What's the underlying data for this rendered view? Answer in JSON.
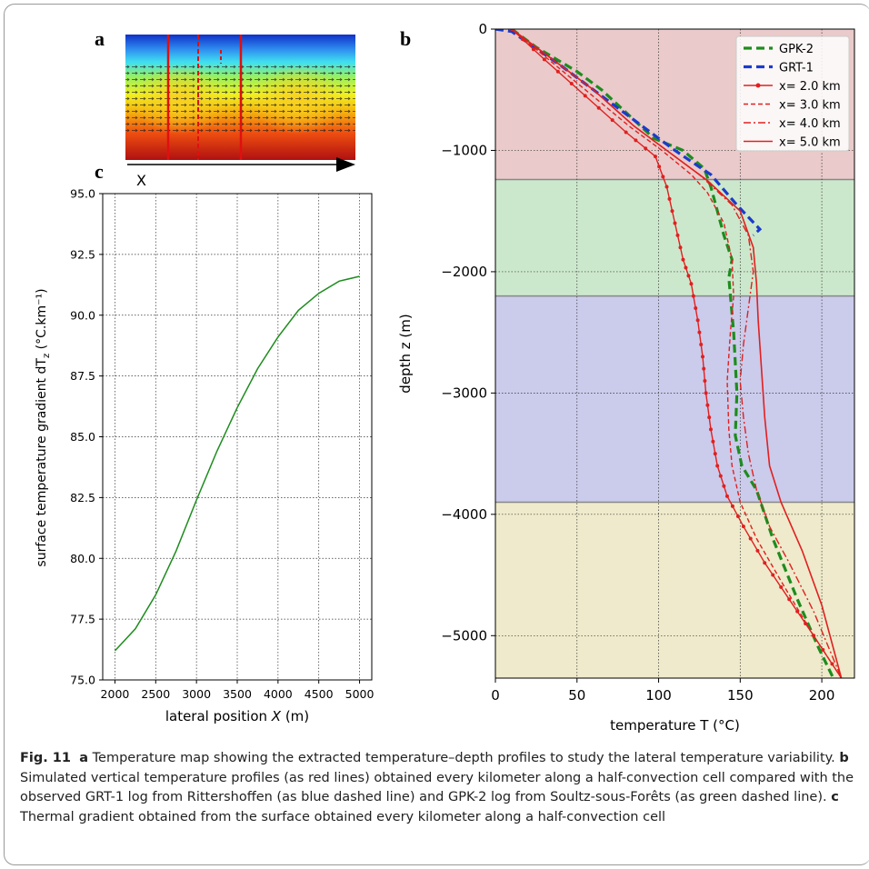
{
  "panel_labels": {
    "a": "a",
    "b": "b",
    "c": "c"
  },
  "panel_a": {
    "axis_label": "X"
  },
  "chart_data": [
    {
      "panel": "b",
      "type": "line",
      "xlabel": "temperature T (°C)",
      "ylabel": "depth z (m)",
      "xlim": [
        0,
        220
      ],
      "ylim": [
        -5350,
        0
      ],
      "xticks": [
        0,
        50,
        100,
        150,
        200
      ],
      "yticks": [
        0,
        -1000,
        -2000,
        -3000,
        -4000,
        -5000
      ],
      "grid": true,
      "legend_position": "top-right",
      "layers": [
        {
          "top": 0,
          "bottom": -1240,
          "color": "#eacaca"
        },
        {
          "top": -1240,
          "bottom": -2200,
          "color": "#cce8cc"
        },
        {
          "top": -2200,
          "bottom": -3900,
          "color": "#cbcbeb"
        },
        {
          "top": -3900,
          "bottom": -5350,
          "color": "#eeeacb"
        }
      ],
      "series": [
        {
          "name": "GPK-2",
          "color": "#1e8c1e",
          "style": "dashed-thick",
          "points": [
            [
              10,
              0
            ],
            [
              25,
              -150
            ],
            [
              50,
              -350
            ],
            [
              65,
              -500
            ],
            [
              85,
              -750
            ],
            [
              97,
              -900
            ],
            [
              115,
              -1000
            ],
            [
              128,
              -1150
            ],
            [
              132,
              -1300
            ],
            [
              135,
              -1450
            ],
            [
              140,
              -1700
            ],
            [
              145,
              -1900
            ],
            [
              143,
              -2050
            ],
            [
              146,
              -2500
            ],
            [
              148,
              -3000
            ],
            [
              147,
              -3350
            ],
            [
              151,
              -3600
            ],
            [
              160,
              -3800
            ],
            [
              170,
              -4200
            ],
            [
              185,
              -4700
            ],
            [
              198,
              -5100
            ],
            [
              207,
              -5350
            ]
          ]
        },
        {
          "name": "GRT-1",
          "color": "#1a3ccc",
          "style": "dashed-thick",
          "points": [
            [
              0,
              0
            ],
            [
              10,
              -20
            ],
            [
              40,
              -300
            ],
            [
              70,
              -600
            ],
            [
              90,
              -800
            ],
            [
              110,
              -1000
            ],
            [
              132,
              -1200
            ],
            [
              148,
              -1450
            ],
            [
              155,
              -1550
            ],
            [
              162,
              -1650
            ],
            [
              158,
              -1700
            ]
          ]
        },
        {
          "name": "x= 2.0 km",
          "color": "#e02020",
          "style": "solid-dots",
          "points": [
            [
              10,
              0
            ],
            [
              30,
              -250
            ],
            [
              55,
              -550
            ],
            [
              80,
              -850
            ],
            [
              98,
              -1050
            ],
            [
              105,
              -1300
            ],
            [
              110,
              -1600
            ],
            [
              115,
              -1900
            ],
            [
              120,
              -2100
            ],
            [
              124,
              -2400
            ],
            [
              127,
              -2700
            ],
            [
              129,
              -3000
            ],
            [
              132,
              -3300
            ],
            [
              136,
              -3600
            ],
            [
              142,
              -3850
            ],
            [
              152,
              -4100
            ],
            [
              165,
              -4400
            ],
            [
              180,
              -4700
            ],
            [
              195,
              -5000
            ],
            [
              212,
              -5350
            ]
          ]
        },
        {
          "name": "x= 3.0 km",
          "color": "#e02020",
          "style": "dashed",
          "points": [
            [
              10,
              0
            ],
            [
              28,
              -200
            ],
            [
              55,
              -500
            ],
            [
              82,
              -800
            ],
            [
              102,
              -1000
            ],
            [
              120,
              -1200
            ],
            [
              130,
              -1350
            ],
            [
              140,
              -1600
            ],
            [
              145,
              -1900
            ],
            [
              146,
              -2200
            ],
            [
              144,
              -2500
            ],
            [
              142,
              -2900
            ],
            [
              143,
              -3300
            ],
            [
              145,
              -3600
            ],
            [
              150,
              -3900
            ],
            [
              160,
              -4200
            ],
            [
              175,
              -4550
            ],
            [
              195,
              -5000
            ],
            [
              212,
              -5350
            ]
          ]
        },
        {
          "name": "x= 4.0 km",
          "color": "#e02020",
          "style": "dashdot",
          "points": [
            [
              10,
              0
            ],
            [
              30,
              -200
            ],
            [
              60,
              -500
            ],
            [
              85,
              -800
            ],
            [
              105,
              -1000
            ],
            [
              125,
              -1200
            ],
            [
              145,
              -1450
            ],
            [
              155,
              -1700
            ],
            [
              158,
              -2000
            ],
            [
              155,
              -2300
            ],
            [
              152,
              -2600
            ],
            [
              150,
              -2900
            ],
            [
              152,
              -3200
            ],
            [
              155,
              -3500
            ],
            [
              160,
              -3800
            ],
            [
              168,
              -4100
            ],
            [
              180,
              -4400
            ],
            [
              195,
              -4800
            ],
            [
              212,
              -5350
            ]
          ]
        },
        {
          "name": "x= 5.0 km",
          "color": "#e02020",
          "style": "solid",
          "points": [
            [
              10,
              0
            ],
            [
              30,
              -200
            ],
            [
              60,
              -500
            ],
            [
              85,
              -800
            ],
            [
              105,
              -1000
            ],
            [
              130,
              -1250
            ],
            [
              150,
              -1500
            ],
            [
              158,
              -1800
            ],
            [
              160,
              -2100
            ],
            [
              161,
              -2400
            ],
            [
              163,
              -2800
            ],
            [
              165,
              -3200
            ],
            [
              168,
              -3600
            ],
            [
              175,
              -3900
            ],
            [
              188,
              -4300
            ],
            [
              200,
              -4750
            ],
            [
              212,
              -5350
            ]
          ]
        }
      ]
    },
    {
      "panel": "c",
      "type": "line",
      "xlabel": "lateral position X (m)",
      "ylabel": "surface temperature gradient dTz (°C.km⁻¹)",
      "xlim": [
        1850,
        5150
      ],
      "ylim": [
        75,
        95
      ],
      "xticks": [
        2000,
        2500,
        3000,
        3500,
        4000,
        4500,
        5000
      ],
      "yticks": [
        75.0,
        77.5,
        80.0,
        82.5,
        85.0,
        87.5,
        90.0,
        92.5,
        95.0
      ],
      "grid": true,
      "series": [
        {
          "color": "#1e8c1e",
          "x": [
            2000,
            2250,
            2500,
            2750,
            3000,
            3250,
            3500,
            3750,
            4000,
            4250,
            4500,
            4750,
            5000
          ],
          "y": [
            76.2,
            77.1,
            78.5,
            80.3,
            82.4,
            84.4,
            86.2,
            87.8,
            89.1,
            90.2,
            90.9,
            91.4,
            91.6
          ]
        }
      ]
    }
  ],
  "caption": {
    "fig_label": "Fig. 11",
    "a_label": "a",
    "a_text": "Temperature map showing the extracted temperature–depth profiles to study the lateral temperature variability.",
    "b_label": "b",
    "b_text": "Simulated vertical temperature profiles (as red lines) obtained every kilometer along a half-convection cell compared with the observed GRT-1 log from Rittershoffen (as blue dashed line) and GPK-2 log from Soultz-sous-Forêts (as green dashed line).",
    "c_label": "c",
    "c_text": "Thermal gradient obtained from the surface obtained every kilometer along a half-convection cell"
  }
}
